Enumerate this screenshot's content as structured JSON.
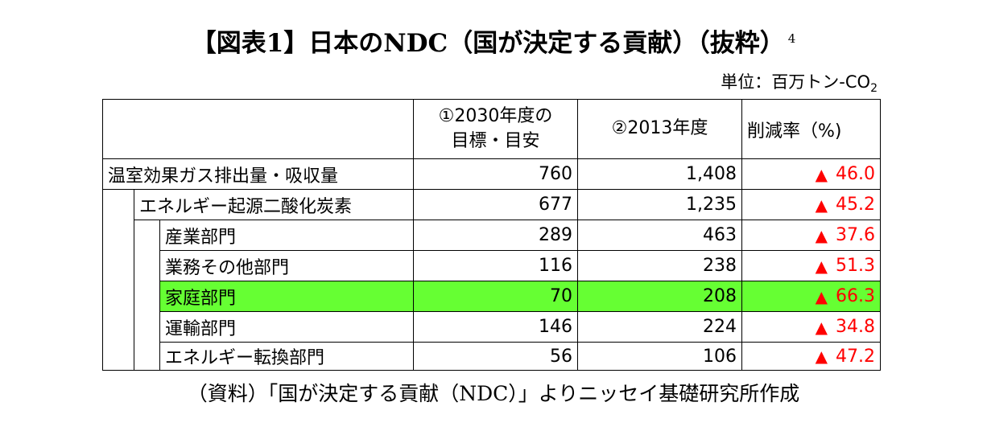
{
  "title": "【図表1】日本のNDC（国が決定する貢献）（抜粋）",
  "title_footnote": "4",
  "unit_label": "単位：百万トン-CO",
  "unit_subscript": "2",
  "headers": {
    "col1_line1": "①2030年度の",
    "col1_line2": "目標・目安",
    "col2": "②2013年度",
    "col3": "削減率（%)"
  },
  "rows": [
    {
      "label": "温室効果ガス排出量・吸収量",
      "v2030": "760",
      "v2013": "1,408",
      "rate": "46.0",
      "marker": "▲"
    },
    {
      "label": "エネルギー起源二酸化炭素",
      "v2030": "677",
      "v2013": "1,235",
      "rate": "45.2",
      "marker": "▲"
    },
    {
      "label": "産業部門",
      "v2030": "289",
      "v2013": "463",
      "rate": "37.6",
      "marker": "▲"
    },
    {
      "label": "業務その他部門",
      "v2030": "116",
      "v2013": "238",
      "rate": "51.3",
      "marker": "▲"
    },
    {
      "label": "家庭部門",
      "v2030": "70",
      "v2013": "208",
      "rate": "66.3",
      "marker": "▲",
      "highlighted": true
    },
    {
      "label": "運輸部門",
      "v2030": "146",
      "v2013": "224",
      "rate": "34.8",
      "marker": "▲"
    },
    {
      "label": "エネルギー転換部門",
      "v2030": "56",
      "v2013": "106",
      "rate": "47.2",
      "marker": "▲"
    }
  ],
  "source": "（資料）「国が決定する貢献（NDC）」よりニッセイ基礎研究所作成",
  "colors": {
    "highlight": "#66ff33",
    "rate_text": "#ff0000"
  }
}
